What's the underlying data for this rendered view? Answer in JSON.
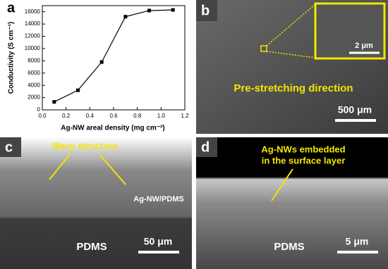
{
  "chart_data": {
    "type": "line",
    "panel_label": "a",
    "x": [
      0.1,
      0.3,
      0.5,
      0.7,
      0.9,
      1.1
    ],
    "values": [
      1300,
      3200,
      7800,
      15200,
      16200,
      16300
    ],
    "color": "#000000",
    "xlabel": "Ag-NW areal density (mg cm⁻²)",
    "ylabel": "Conductivity (S cm⁻¹)",
    "xlim": [
      0,
      1.2
    ],
    "xticks": [
      {
        "value": 0,
        "label": "0.0"
      },
      0.2,
      0.4,
      0.6,
      0.8,
      {
        "value": 1,
        "label": "1.0"
      },
      1.2
    ],
    "ylim": [
      0,
      17000
    ],
    "yticks": [
      0,
      2000,
      4000,
      6000,
      8000,
      10000,
      12000,
      14000,
      16000
    ]
  },
  "panels": {
    "b": {
      "label": "b",
      "direction": "Pre-stretching direction",
      "scale": "500 μm",
      "inset_scale": "2 μm"
    },
    "c": {
      "label": "c",
      "annotation": "Wavy structure",
      "layer": "Ag-NW/PDMS",
      "substrate": "PDMS",
      "scale": "50 μm"
    },
    "d": {
      "label": "d",
      "annotation_1": "Ag-NWs embedded",
      "annotation_2": "in the surface layer",
      "substrate": "PDMS",
      "scale": "5 μm"
    }
  }
}
